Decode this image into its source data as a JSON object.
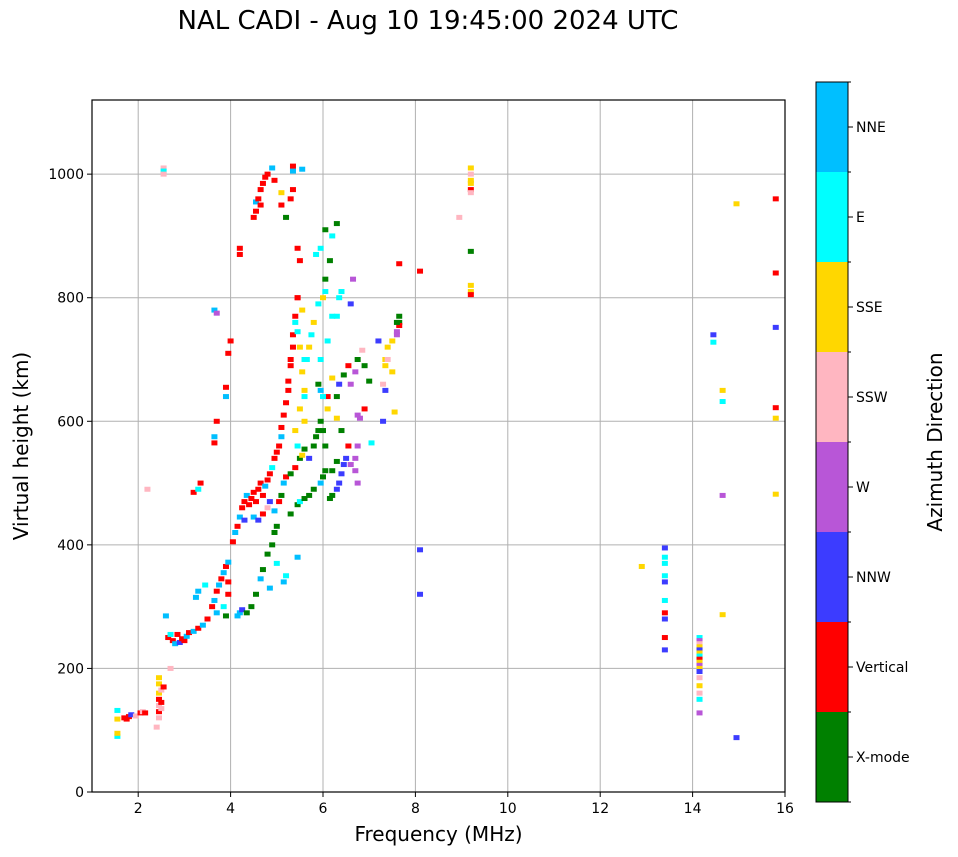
{
  "title": "NAL CADI - Aug 10 19:45:00 2024 UTC",
  "chart_data": {
    "type": "scatter",
    "title": "NAL CADI - Aug 10 19:45:00 2024 UTC",
    "xlabel": "Frequency (MHz)",
    "ylabel": "Virtual height (km)",
    "xlim": [
      1,
      16
    ],
    "ylim": [
      0,
      1120
    ],
    "xticks": [
      2,
      4,
      6,
      8,
      10,
      12,
      14,
      16
    ],
    "yticks": [
      0,
      200,
      400,
      600,
      800,
      1000
    ],
    "grid": true,
    "colorbar": {
      "label": "Azimuth Direction",
      "categories": [
        "X-mode",
        "Vertical",
        "NNW",
        "W",
        "SSW",
        "SSE",
        "E",
        "NNE"
      ],
      "colors": [
        "#008000",
        "#ff0000",
        "#3c3cff",
        "#b856d7",
        "#ffb6c1",
        "#ffd700",
        "#00ffff",
        "#00bfff"
      ]
    },
    "series_note": "points are [frequency_MHz, virtual_height_km, azimuth_category_index]",
    "points": [
      [
        1.55,
        90,
        6
      ],
      [
        1.55,
        95,
        5
      ],
      [
        1.55,
        118,
        5
      ],
      [
        1.55,
        132,
        6
      ],
      [
        1.7,
        120,
        1
      ],
      [
        1.75,
        118,
        1
      ],
      [
        1.8,
        122,
        1
      ],
      [
        1.85,
        125,
        2
      ],
      [
        1.95,
        123,
        4
      ],
      [
        2.05,
        128,
        1
      ],
      [
        2.1,
        130,
        4
      ],
      [
        2.15,
        128,
        1
      ],
      [
        2.4,
        105,
        4
      ],
      [
        2.45,
        120,
        4
      ],
      [
        2.45,
        130,
        1
      ],
      [
        2.45,
        140,
        4
      ],
      [
        2.45,
        150,
        1
      ],
      [
        2.45,
        160,
        5
      ],
      [
        2.45,
        175,
        5
      ],
      [
        2.45,
        185,
        5
      ],
      [
        2.5,
        135,
        4
      ],
      [
        2.5,
        145,
        1
      ],
      [
        2.5,
        165,
        4
      ],
      [
        2.55,
        170,
        1
      ],
      [
        2.65,
        250,
        1
      ],
      [
        2.7,
        255,
        6
      ],
      [
        2.75,
        245,
        1
      ],
      [
        2.8,
        240,
        7
      ],
      [
        2.85,
        255,
        1
      ],
      [
        2.9,
        242,
        2
      ],
      [
        2.95,
        248,
        1
      ],
      [
        3.0,
        245,
        1
      ],
      [
        3.05,
        252,
        7
      ],
      [
        3.1,
        258,
        1
      ],
      [
        3.2,
        260,
        7
      ],
      [
        3.3,
        265,
        1
      ],
      [
        3.4,
        270,
        7
      ],
      [
        3.5,
        280,
        1
      ],
      [
        2.7,
        200,
        4
      ],
      [
        2.6,
        285,
        7
      ],
      [
        3.25,
        315,
        7
      ],
      [
        3.3,
        325,
        7
      ],
      [
        3.45,
        335,
        6
      ],
      [
        3.6,
        300,
        1
      ],
      [
        3.65,
        310,
        7
      ],
      [
        3.7,
        325,
        1
      ],
      [
        3.75,
        335,
        7
      ],
      [
        3.8,
        345,
        1
      ],
      [
        3.85,
        355,
        7
      ],
      [
        3.9,
        365,
        1
      ],
      [
        3.95,
        372,
        7
      ],
      [
        3.95,
        340,
        1
      ],
      [
        3.95,
        320,
        1
      ],
      [
        3.85,
        300,
        6
      ],
      [
        3.9,
        285,
        0
      ],
      [
        3.7,
        290,
        7
      ],
      [
        4.15,
        285,
        7
      ],
      [
        4.2,
        290,
        7
      ],
      [
        4.25,
        295,
        2
      ],
      [
        4.35,
        290,
        0
      ],
      [
        4.45,
        300,
        0
      ],
      [
        4.55,
        320,
        0
      ],
      [
        4.65,
        345,
        7
      ],
      [
        4.7,
        360,
        0
      ],
      [
        4.8,
        385,
        0
      ],
      [
        4.9,
        400,
        0
      ],
      [
        4.95,
        420,
        0
      ],
      [
        5.0,
        430,
        0
      ],
      [
        4.05,
        405,
        1
      ],
      [
        4.1,
        420,
        7
      ],
      [
        4.15,
        430,
        1
      ],
      [
        4.2,
        445,
        7
      ],
      [
        4.25,
        460,
        1
      ],
      [
        4.3,
        470,
        1
      ],
      [
        4.35,
        480,
        7
      ],
      [
        4.4,
        465,
        1
      ],
      [
        4.45,
        475,
        1
      ],
      [
        4.5,
        485,
        1
      ],
      [
        4.55,
        470,
        1
      ],
      [
        4.6,
        490,
        1
      ],
      [
        4.65,
        500,
        1
      ],
      [
        4.7,
        480,
        1
      ],
      [
        4.75,
        495,
        7
      ],
      [
        4.8,
        505,
        1
      ],
      [
        4.85,
        515,
        1
      ],
      [
        4.9,
        525,
        6
      ],
      [
        4.95,
        540,
        1
      ],
      [
        5.0,
        550,
        1
      ],
      [
        5.05,
        560,
        1
      ],
      [
        5.1,
        575,
        7
      ],
      [
        5.1,
        590,
        1
      ],
      [
        5.15,
        610,
        1
      ],
      [
        5.2,
        630,
        1
      ],
      [
        5.25,
        650,
        1
      ],
      [
        5.25,
        665,
        1
      ],
      [
        5.3,
        690,
        1
      ],
      [
        5.3,
        700,
        1
      ],
      [
        5.35,
        720,
        1
      ],
      [
        5.35,
        740,
        1
      ],
      [
        5.4,
        770,
        1
      ],
      [
        5.45,
        800,
        1
      ],
      [
        4.3,
        440,
        2
      ],
      [
        4.5,
        445,
        7
      ],
      [
        4.6,
        440,
        2
      ],
      [
        4.7,
        450,
        1
      ],
      [
        4.8,
        460,
        4
      ],
      [
        4.85,
        470,
        2
      ],
      [
        4.95,
        455,
        7
      ],
      [
        5.05,
        470,
        1
      ],
      [
        5.1,
        480,
        0
      ],
      [
        5.15,
        500,
        7
      ],
      [
        5.2,
        510,
        1
      ],
      [
        5.3,
        515,
        0
      ],
      [
        5.4,
        525,
        1
      ],
      [
        5.5,
        540,
        0
      ],
      [
        5.55,
        545,
        5
      ],
      [
        5.6,
        555,
        0
      ],
      [
        5.7,
        540,
        2
      ],
      [
        5.8,
        560,
        0
      ],
      [
        5.85,
        575,
        0
      ],
      [
        5.9,
        585,
        0
      ],
      [
        5.95,
        600,
        0
      ],
      [
        6.0,
        585,
        0
      ],
      [
        6.05,
        560,
        0
      ],
      [
        5.3,
        450,
        0
      ],
      [
        5.45,
        465,
        0
      ],
      [
        5.5,
        470,
        6
      ],
      [
        5.6,
        475,
        0
      ],
      [
        5.7,
        480,
        0
      ],
      [
        5.8,
        490,
        0
      ],
      [
        5.95,
        500,
        7
      ],
      [
        6.0,
        510,
        0
      ],
      [
        6.05,
        520,
        0
      ],
      [
        6.15,
        475,
        0
      ],
      [
        6.2,
        480,
        0
      ],
      [
        6.3,
        490,
        2
      ],
      [
        6.35,
        500,
        2
      ],
      [
        6.4,
        515,
        2
      ],
      [
        6.45,
        530,
        2
      ],
      [
        6.5,
        540,
        2
      ],
      [
        6.55,
        560,
        1
      ],
      [
        6.6,
        530,
        3
      ],
      [
        6.7,
        520,
        3
      ],
      [
        6.75,
        500,
        3
      ],
      [
        6.7,
        540,
        3
      ],
      [
        6.75,
        560,
        3
      ],
      [
        6.3,
        535,
        0
      ],
      [
        6.2,
        520,
        0
      ],
      [
        5.9,
        660,
        0
      ],
      [
        5.95,
        650,
        7
      ],
      [
        6.1,
        640,
        1
      ],
      [
        6.2,
        670,
        5
      ],
      [
        6.3,
        640,
        0
      ],
      [
        6.35,
        660,
        2
      ],
      [
        6.45,
        675,
        0
      ],
      [
        6.55,
        690,
        1
      ],
      [
        6.6,
        660,
        3
      ],
      [
        6.7,
        680,
        3
      ],
      [
        6.75,
        700,
        0
      ],
      [
        6.85,
        715,
        4
      ],
      [
        6.9,
        690,
        0
      ],
      [
        7.0,
        665,
        0
      ],
      [
        6.75,
        610,
        3
      ],
      [
        6.8,
        605,
        3
      ],
      [
        6.9,
        620,
        1
      ],
      [
        5.6,
        600,
        5
      ],
      [
        5.6,
        640,
        6
      ],
      [
        5.65,
        700,
        6
      ],
      [
        5.7,
        720,
        5
      ],
      [
        5.75,
        740,
        6
      ],
      [
        5.8,
        760,
        5
      ],
      [
        5.9,
        790,
        6
      ],
      [
        6.3,
        770,
        6
      ],
      [
        6.35,
        800,
        6
      ],
      [
        6.4,
        810,
        6
      ],
      [
        6.6,
        790,
        2
      ],
      [
        6.65,
        830,
        3
      ],
      [
        6.2,
        770,
        6
      ],
      [
        6.1,
        730,
        6
      ],
      [
        5.95,
        700,
        6
      ],
      [
        6.0,
        640,
        6
      ],
      [
        6.1,
        620,
        5
      ],
      [
        6.3,
        605,
        5
      ],
      [
        6.4,
        585,
        0
      ],
      [
        5.45,
        380,
        7
      ],
      [
        5.2,
        350,
        6
      ],
      [
        5.15,
        340,
        7
      ],
      [
        5.0,
        370,
        6
      ],
      [
        4.85,
        330,
        7
      ],
      [
        5.45,
        560,
        6
      ],
      [
        5.4,
        585,
        5
      ],
      [
        5.5,
        620,
        5
      ],
      [
        5.6,
        650,
        5
      ],
      [
        5.55,
        680,
        5
      ],
      [
        5.6,
        700,
        6
      ],
      [
        5.5,
        720,
        5
      ],
      [
        5.45,
        745,
        6
      ],
      [
        5.4,
        760,
        6
      ],
      [
        5.55,
        780,
        5
      ],
      [
        6.0,
        800,
        5
      ],
      [
        6.05,
        830,
        0
      ],
      [
        6.15,
        860,
        0
      ],
      [
        6.2,
        900,
        6
      ],
      [
        6.05,
        910,
        0
      ],
      [
        6.3,
        920,
        0
      ],
      [
        5.95,
        880,
        6
      ],
      [
        5.85,
        870,
        6
      ],
      [
        6.05,
        810,
        6
      ],
      [
        7.05,
        565,
        6
      ],
      [
        7.2,
        730,
        2
      ],
      [
        7.35,
        690,
        5
      ],
      [
        7.35,
        700,
        5
      ],
      [
        7.5,
        730,
        5
      ],
      [
        7.6,
        745,
        3
      ],
      [
        7.65,
        760,
        0
      ],
      [
        7.65,
        770,
        0
      ],
      [
        7.65,
        755,
        1
      ],
      [
        7.5,
        680,
        5
      ],
      [
        7.3,
        660,
        4
      ],
      [
        7.3,
        600,
        2
      ],
      [
        7.35,
        650,
        2
      ],
      [
        7.4,
        700,
        4
      ],
      [
        7.4,
        720,
        5
      ],
      [
        7.55,
        615,
        5
      ],
      [
        7.65,
        855,
        1
      ],
      [
        8.1,
        843,
        1
      ],
      [
        8.1,
        392,
        2
      ],
      [
        8.1,
        320,
        2
      ],
      [
        7.6,
        760,
        0
      ],
      [
        7.6,
        740,
        3
      ],
      [
        4.0,
        730,
        1
      ],
      [
        3.95,
        710,
        1
      ],
      [
        3.9,
        655,
        1
      ],
      [
        3.9,
        640,
        7
      ],
      [
        3.65,
        565,
        1
      ],
      [
        3.65,
        575,
        7
      ],
      [
        3.7,
        600,
        1
      ],
      [
        3.65,
        780,
        7
      ],
      [
        3.7,
        775,
        3
      ],
      [
        3.2,
        485,
        1
      ],
      [
        3.3,
        490,
        6
      ],
      [
        3.35,
        500,
        1
      ],
      [
        2.2,
        490,
        4
      ],
      [
        4.2,
        880,
        1
      ],
      [
        4.2,
        870,
        1
      ],
      [
        4.5,
        930,
        1
      ],
      [
        4.55,
        940,
        1
      ],
      [
        4.55,
        955,
        7
      ],
      [
        4.6,
        960,
        1
      ],
      [
        4.65,
        950,
        1
      ],
      [
        4.65,
        975,
        1
      ],
      [
        4.7,
        985,
        1
      ],
      [
        4.75,
        995,
        1
      ],
      [
        4.8,
        1000,
        1
      ],
      [
        4.9,
        1010,
        7
      ],
      [
        4.95,
        990,
        1
      ],
      [
        5.1,
        970,
        5
      ],
      [
        5.2,
        930,
        0
      ],
      [
        5.3,
        960,
        1
      ],
      [
        5.35,
        975,
        1
      ],
      [
        5.35,
        1005,
        7
      ],
      [
        5.35,
        1013,
        1
      ],
      [
        5.55,
        1008,
        7
      ],
      [
        5.1,
        950,
        1
      ],
      [
        5.5,
        860,
        1
      ],
      [
        5.45,
        880,
        1
      ],
      [
        5.45,
        800,
        1
      ],
      [
        2.55,
        1010,
        4
      ],
      [
        2.55,
        1005,
        6
      ],
      [
        2.55,
        1000,
        4
      ],
      [
        9.2,
        1010,
        5
      ],
      [
        9.2,
        1000,
        4
      ],
      [
        9.2,
        990,
        5
      ],
      [
        9.2,
        985,
        5
      ],
      [
        9.2,
        975,
        1
      ],
      [
        9.2,
        970,
        4
      ],
      [
        8.95,
        930,
        4
      ],
      [
        9.2,
        875,
        0
      ],
      [
        9.2,
        820,
        5
      ],
      [
        9.2,
        810,
        5
      ],
      [
        9.2,
        805,
        1
      ],
      [
        13.4,
        230,
        2
      ],
      [
        13.4,
        250,
        1
      ],
      [
        13.4,
        280,
        2
      ],
      [
        13.4,
        290,
        1
      ],
      [
        13.4,
        310,
        6
      ],
      [
        13.4,
        340,
        2
      ],
      [
        13.4,
        350,
        6
      ],
      [
        13.4,
        370,
        6
      ],
      [
        13.4,
        380,
        6
      ],
      [
        13.4,
        395,
        2
      ],
      [
        14.15,
        250,
        6
      ],
      [
        14.15,
        245,
        3
      ],
      [
        14.15,
        240,
        4
      ],
      [
        14.15,
        235,
        5
      ],
      [
        14.15,
        230,
        2
      ],
      [
        14.15,
        225,
        5
      ],
      [
        14.15,
        220,
        6
      ],
      [
        14.15,
        215,
        1
      ],
      [
        14.15,
        210,
        5
      ],
      [
        14.15,
        205,
        3
      ],
      [
        14.15,
        200,
        5
      ],
      [
        14.15,
        195,
        2
      ],
      [
        14.15,
        185,
        4
      ],
      [
        14.15,
        172,
        5
      ],
      [
        14.15,
        160,
        4
      ],
      [
        14.15,
        150,
        6
      ],
      [
        14.15,
        128,
        3
      ],
      [
        12.9,
        365,
        5
      ],
      [
        14.45,
        740,
        2
      ],
      [
        14.45,
        728,
        6
      ],
      [
        14.65,
        650,
        5
      ],
      [
        14.65,
        632,
        6
      ],
      [
        14.65,
        480,
        3
      ],
      [
        14.65,
        287,
        5
      ],
      [
        14.95,
        952,
        5
      ],
      [
        14.95,
        88,
        2
      ],
      [
        15.8,
        960,
        1
      ],
      [
        15.8,
        840,
        1
      ],
      [
        15.8,
        752,
        2
      ],
      [
        15.8,
        622,
        1
      ],
      [
        15.8,
        605,
        5
      ],
      [
        15.8,
        482,
        5
      ]
    ]
  }
}
